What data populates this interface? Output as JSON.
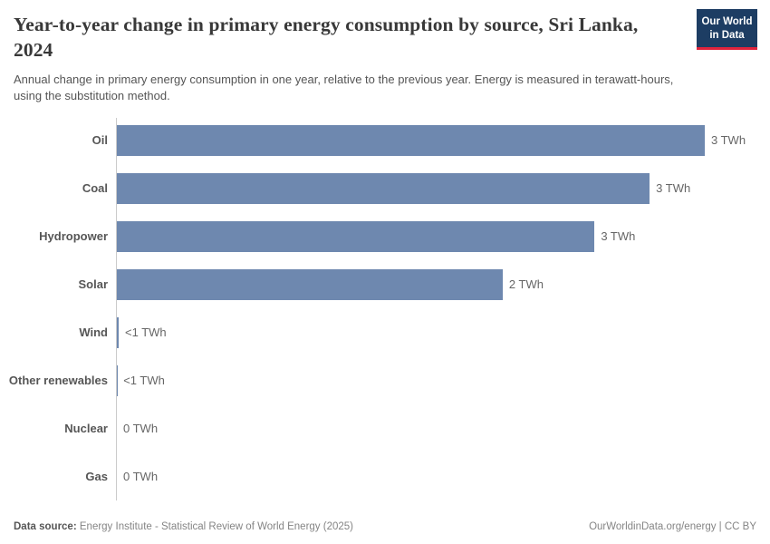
{
  "header": {
    "title": "Year-to-year change in primary energy consumption by source, Sri Lanka, 2024",
    "subtitle": "Annual change in primary energy consumption in one year, relative to the previous year. Energy is measured in terawatt-hours, using the substitution method.",
    "logo": {
      "line1": "Our World",
      "line2": "in Data",
      "bg_color": "#1d3d63",
      "accent_color": "#e0233c"
    }
  },
  "chart_data": {
    "type": "bar",
    "orientation": "horizontal",
    "title": "Year-to-year change in primary energy consumption by source, Sri Lanka, 2024",
    "unit": "TWh",
    "categories": [
      "Oil",
      "Coal",
      "Hydropower",
      "Solar",
      "Wind",
      "Other renewables",
      "Nuclear",
      "Gas"
    ],
    "values": [
      3.2,
      2.9,
      2.6,
      2.1,
      0.01,
      0.001,
      0,
      0
    ],
    "value_labels": [
      "3 TWh",
      "3 TWh",
      "3 TWh",
      "2 TWh",
      "<1 TWh",
      "<1 TWh",
      "0 TWh",
      "0 TWh"
    ],
    "xlim": [
      0,
      3.2
    ],
    "bar_color": "#6e88af",
    "axis_color": "#cbcbcb",
    "grid": false,
    "legend": "none"
  },
  "footer": {
    "source_label": "Data source:",
    "source_text": "Energy Institute - Statistical Review of World Energy (2025)",
    "credit": "OurWorldinData.org/energy | CC BY"
  }
}
